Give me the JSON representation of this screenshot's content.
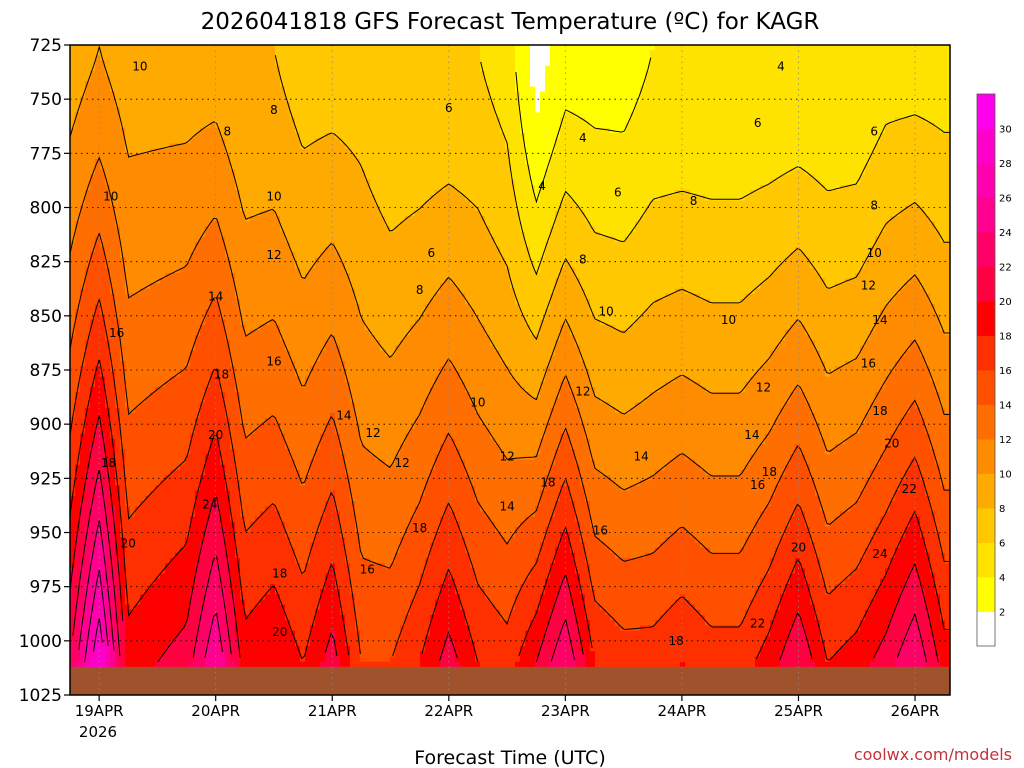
{
  "chart_data": {
    "type": "heatmap",
    "title": "2026041818 GFS Forecast Temperature (ºC) for KAGR",
    "xlabel": "Forecast Time (UTC)",
    "ylabel": "",
    "credit": "coolwx.com/models",
    "y_levels": [
      725,
      750,
      775,
      800,
      825,
      850,
      875,
      900,
      925,
      950,
      975,
      1000,
      1025
    ],
    "ylim": [
      725,
      1025
    ],
    "x_dates": [
      "19APR",
      "20APR",
      "21APR",
      "22APR",
      "23APR",
      "24APR",
      "25APR",
      "26APR"
    ],
    "x_year": "2026",
    "x_days": [
      0,
      1,
      2,
      3,
      4,
      5,
      6,
      7
    ],
    "xlim": [
      -0.25,
      7.3
    ],
    "grid": true,
    "colorbar_levels": [
      2,
      4,
      6,
      8,
      10,
      12,
      14,
      16,
      18,
      20,
      22,
      24,
      26,
      28,
      30
    ],
    "colorbar_colors": [
      "#ffffff",
      "#ffff00",
      "#ffe300",
      "#ffc800",
      "#ffaa00",
      "#ff8c00",
      "#ff6e00",
      "#ff5000",
      "#ff3000",
      "#ff0000",
      "#ff0040",
      "#ff0066",
      "#ff0090",
      "#ff00b0",
      "#ff00cc",
      "#ff00ee"
    ],
    "ground_color": "#a0522d",
    "temperature_profile": {
      "pressure": [
        725,
        750,
        775,
        800,
        825,
        850,
        875,
        900,
        925,
        950,
        975,
        1000,
        1010
      ],
      "times": [
        -0.25,
        0,
        0.25,
        0.5,
        0.75,
        1.0,
        1.25,
        1.5,
        1.75,
        2.0,
        2.25,
        2.5,
        2.75,
        3.0,
        3.25,
        3.5,
        3.75,
        4.0,
        4.25,
        4.5,
        4.75,
        5.0,
        5.25,
        5.5,
        5.75,
        6.0,
        6.25,
        6.5,
        6.75,
        7.0,
        7.25
      ],
      "surface_temps": [
        22,
        30,
        19,
        20,
        21,
        26,
        19,
        20,
        18,
        21,
        16,
        16,
        18,
        21,
        18,
        17,
        20,
        24,
        18,
        17,
        17,
        18,
        17,
        17,
        19,
        22,
        18,
        19,
        21,
        24,
        19
      ],
      "t725_temps": [
        9,
        10,
        9,
        9,
        9,
        9,
        8,
        8,
        7,
        7,
        7,
        6,
        6,
        6,
        6,
        5,
        1,
        3,
        3,
        3,
        4,
        4,
        4,
        4,
        4,
        4,
        4,
        4,
        5,
        5,
        5
      ]
    },
    "contour_labels": [
      {
        "text": "10",
        "t": 0.35,
        "p": 735
      },
      {
        "text": "8",
        "t": 1.1,
        "p": 765
      },
      {
        "text": "8",
        "t": 1.5,
        "p": 755
      },
      {
        "text": "10",
        "t": 0.1,
        "p": 795
      },
      {
        "text": "10",
        "t": 1.5,
        "p": 795
      },
      {
        "text": "12",
        "t": 1.5,
        "p": 822
      },
      {
        "text": "14",
        "t": 1.0,
        "p": 841
      },
      {
        "text": "16",
        "t": 0.15,
        "p": 858
      },
      {
        "text": "16",
        "t": 1.5,
        "p": 871
      },
      {
        "text": "18",
        "t": 1.05,
        "p": 877
      },
      {
        "text": "14",
        "t": 2.1,
        "p": 896
      },
      {
        "text": "12",
        "t": 2.35,
        "p": 904
      },
      {
        "text": "20",
        "t": 1.0,
        "p": 905
      },
      {
        "text": "18",
        "t": 0.08,
        "p": 918
      },
      {
        "text": "12",
        "t": 2.6,
        "p": 918
      },
      {
        "text": "24",
        "t": 0.95,
        "p": 937
      },
      {
        "text": "20",
        "t": 0.25,
        "p": 955
      },
      {
        "text": "18",
        "t": 1.55,
        "p": 969
      },
      {
        "text": "16",
        "t": 2.3,
        "p": 967
      },
      {
        "text": "20",
        "t": 1.55,
        "p": 996
      },
      {
        "text": "6",
        "t": 3.0,
        "p": 754
      },
      {
        "text": "6",
        "t": 2.85,
        "p": 821
      },
      {
        "text": "8",
        "t": 2.75,
        "p": 838
      },
      {
        "text": "10",
        "t": 3.25,
        "p": 890
      },
      {
        "text": "12",
        "t": 3.5,
        "p": 915
      },
      {
        "text": "14",
        "t": 3.5,
        "p": 938
      },
      {
        "text": "18",
        "t": 2.75,
        "p": 948
      },
      {
        "text": "4",
        "t": 4.15,
        "p": 768
      },
      {
        "text": "4",
        "t": 3.8,
        "p": 790
      },
      {
        "text": "6",
        "t": 4.45,
        "p": 793
      },
      {
        "text": "8",
        "t": 4.15,
        "p": 824
      },
      {
        "text": "10",
        "t": 4.35,
        "p": 848
      },
      {
        "text": "12",
        "t": 4.15,
        "p": 885
      },
      {
        "text": "18",
        "t": 3.85,
        "p": 927
      },
      {
        "text": "16",
        "t": 4.3,
        "p": 949
      },
      {
        "text": "14",
        "t": 4.65,
        "p": 915
      },
      {
        "text": "8",
        "t": 5.1,
        "p": 797
      },
      {
        "text": "6",
        "t": 5.65,
        "p": 761
      },
      {
        "text": "4",
        "t": 5.85,
        "p": 735
      },
      {
        "text": "6",
        "t": 6.65,
        "p": 765
      },
      {
        "text": "8",
        "t": 6.65,
        "p": 799
      },
      {
        "text": "10",
        "t": 6.65,
        "p": 821
      },
      {
        "text": "10",
        "t": 5.4,
        "p": 852
      },
      {
        "text": "12",
        "t": 5.7,
        "p": 883
      },
      {
        "text": "12",
        "t": 6.6,
        "p": 836
      },
      {
        "text": "14",
        "t": 5.6,
        "p": 905
      },
      {
        "text": "14",
        "t": 6.7,
        "p": 852
      },
      {
        "text": "16",
        "t": 5.65,
        "p": 928
      },
      {
        "text": "16",
        "t": 6.6,
        "p": 872
      },
      {
        "text": "18",
        "t": 5.75,
        "p": 922
      },
      {
        "text": "18",
        "t": 6.7,
        "p": 894
      },
      {
        "text": "20",
        "t": 6.0,
        "p": 957
      },
      {
        "text": "20",
        "t": 6.8,
        "p": 909
      },
      {
        "text": "22",
        "t": 6.95,
        "p": 930
      },
      {
        "text": "24",
        "t": 6.7,
        "p": 960
      },
      {
        "text": "22",
        "t": 5.65,
        "p": 992
      },
      {
        "text": "18",
        "t": 4.95,
        "p": 1000
      }
    ]
  }
}
